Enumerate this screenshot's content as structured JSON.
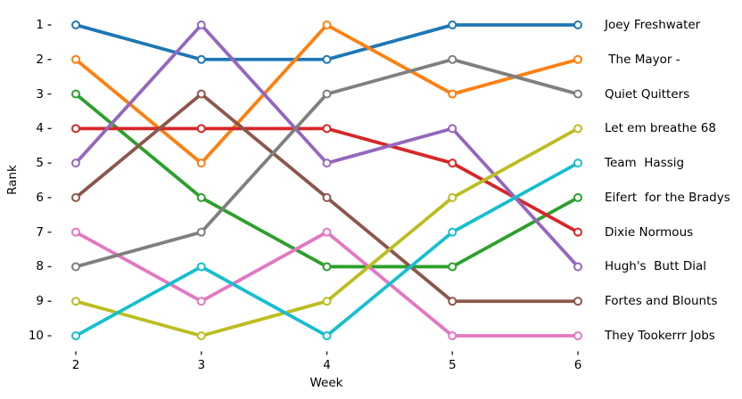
{
  "chart_data": {
    "type": "line",
    "variant": "bump-chart",
    "title": "",
    "xlabel": "Week",
    "ylabel": "Rank",
    "x": [
      2,
      3,
      4,
      5,
      6
    ],
    "y_ticks": [
      1,
      2,
      3,
      4,
      5,
      6,
      7,
      8,
      9,
      10
    ],
    "y_inverted": true,
    "xlim": [
      1.8,
      6.2
    ],
    "ylim": [
      0.55,
      10.45
    ],
    "grid": false,
    "marker": "open-circle-white-fill",
    "legend_position": "right-of-plot-at-final-rank",
    "series": [
      {
        "name": "Joey Freshwater",
        "color": "#1f77b4",
        "ranks": [
          1,
          2,
          2,
          1,
          1
        ]
      },
      {
        "name": " The Mayor -",
        "color": "#ff7f0e",
        "ranks": [
          2,
          5,
          1,
          3,
          2
        ]
      },
      {
        "name": "Quiet Quitters",
        "color": "#7f7f7f",
        "ranks": [
          8,
          7,
          3,
          2,
          3
        ]
      },
      {
        "name": "Let em breathe 68",
        "color": "#bcbd22",
        "ranks": [
          9,
          10,
          9,
          6,
          4
        ]
      },
      {
        "name": "Team  Hassig",
        "color": "#17becf",
        "ranks": [
          10,
          8,
          10,
          7,
          5
        ]
      },
      {
        "name": "Eifert  for the Bradys",
        "color": "#2ca02c",
        "ranks": [
          3,
          6,
          8,
          8,
          6
        ]
      },
      {
        "name": "Dixie Normous",
        "color": "#d62728",
        "ranks": [
          4,
          4,
          4,
          5,
          7
        ]
      },
      {
        "name": "Hugh's  Butt Dial",
        "color": "#9467bd",
        "ranks": [
          5,
          1,
          5,
          4,
          8
        ]
      },
      {
        "name": "Fortes and Blounts",
        "color": "#8c564b",
        "ranks": [
          6,
          3,
          6,
          9,
          9
        ]
      },
      {
        "name": "They Tookerrr Jobs",
        "color": "#e377c2",
        "ranks": [
          7,
          9,
          7,
          10,
          10
        ]
      }
    ],
    "tick_color": "#262626",
    "background_color": "#ffffff"
  }
}
